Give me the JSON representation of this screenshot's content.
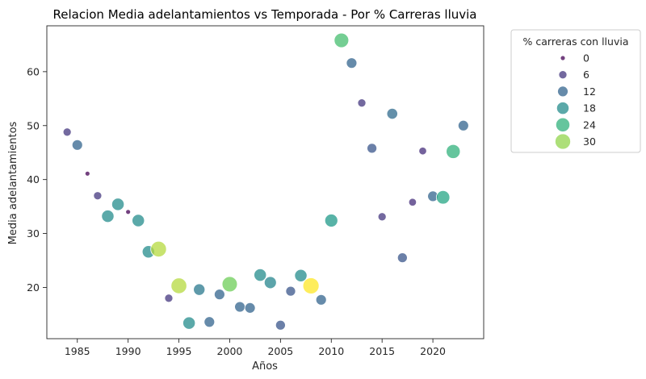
{
  "chart_data": {
    "type": "scatter",
    "title": "Relacion Media adelantamientos vs Temporada - Por % Carreras lluvia",
    "xlabel": "Años",
    "ylabel": "Media adelantamientos",
    "xlim": [
      1982,
      2025
    ],
    "ylim": [
      10.5,
      68.5
    ],
    "xticks": [
      1985,
      1990,
      1995,
      2000,
      2005,
      2010,
      2015,
      2020
    ],
    "yticks": [
      20,
      30,
      40,
      50,
      60
    ],
    "grid": false,
    "size_range": [
      0,
      33
    ],
    "legend": {
      "title": "% carreras con lluvia",
      "placement": "outside-right",
      "entries": [
        {
          "label": "0",
          "value": 0
        },
        {
          "label": "6",
          "value": 6
        },
        {
          "label": "12",
          "value": 12
        },
        {
          "label": "18",
          "value": 18
        },
        {
          "label": "24",
          "value": 24
        },
        {
          "label": "30",
          "value": 30
        }
      ]
    },
    "points": [
      {
        "x": 1984,
        "y": 48.8,
        "rain": 6
      },
      {
        "x": 1985,
        "y": 46.4,
        "rain": 12
      },
      {
        "x": 1986,
        "y": 41.1,
        "rain": 0
      },
      {
        "x": 1987,
        "y": 37.0,
        "rain": 6
      },
      {
        "x": 1988,
        "y": 33.2,
        "rain": 18
      },
      {
        "x": 1989,
        "y": 35.4,
        "rain": 18
      },
      {
        "x": 1990,
        "y": 34.0,
        "rain": 0
      },
      {
        "x": 1991,
        "y": 32.4,
        "rain": 18
      },
      {
        "x": 1992,
        "y": 26.6,
        "rain": 18
      },
      {
        "x": 1993,
        "y": 27.1,
        "rain": 31
      },
      {
        "x": 1994,
        "y": 18.0,
        "rain": 6
      },
      {
        "x": 1995,
        "y": 20.3,
        "rain": 31
      },
      {
        "x": 1996,
        "y": 13.4,
        "rain": 18
      },
      {
        "x": 1997,
        "y": 19.6,
        "rain": 15
      },
      {
        "x": 1998,
        "y": 13.6,
        "rain": 12
      },
      {
        "x": 1999,
        "y": 18.7,
        "rain": 12
      },
      {
        "x": 2000,
        "y": 20.6,
        "rain": 29
      },
      {
        "x": 2001,
        "y": 16.4,
        "rain": 12
      },
      {
        "x": 2002,
        "y": 16.2,
        "rain": 12
      },
      {
        "x": 2003,
        "y": 22.3,
        "rain": 18
      },
      {
        "x": 2004,
        "y": 20.9,
        "rain": 17
      },
      {
        "x": 2005,
        "y": 13.0,
        "rain": 10
      },
      {
        "x": 2006,
        "y": 19.3,
        "rain": 10
      },
      {
        "x": 2007,
        "y": 22.2,
        "rain": 18
      },
      {
        "x": 2008,
        "y": 20.3,
        "rain": 33
      },
      {
        "x": 2009,
        "y": 17.7,
        "rain": 12
      },
      {
        "x": 2010,
        "y": 32.4,
        "rain": 20
      },
      {
        "x": 2011,
        "y": 65.8,
        "rain": 26
      },
      {
        "x": 2012,
        "y": 61.6,
        "rain": 12
      },
      {
        "x": 2013,
        "y": 54.2,
        "rain": 6
      },
      {
        "x": 2014,
        "y": 45.8,
        "rain": 10
      },
      {
        "x": 2015,
        "y": 33.1,
        "rain": 6
      },
      {
        "x": 2016,
        "y": 52.2,
        "rain": 13
      },
      {
        "x": 2017,
        "y": 25.5,
        "rain": 10
      },
      {
        "x": 2018,
        "y": 35.8,
        "rain": 5
      },
      {
        "x": 2019,
        "y": 45.3,
        "rain": 5
      },
      {
        "x": 2020,
        "y": 36.9,
        "rain": 12
      },
      {
        "x": 2021,
        "y": 36.7,
        "rain": 22
      },
      {
        "x": 2022,
        "y": 45.2,
        "rain": 24
      },
      {
        "x": 2023,
        "y": 50.0,
        "rain": 12
      }
    ]
  }
}
